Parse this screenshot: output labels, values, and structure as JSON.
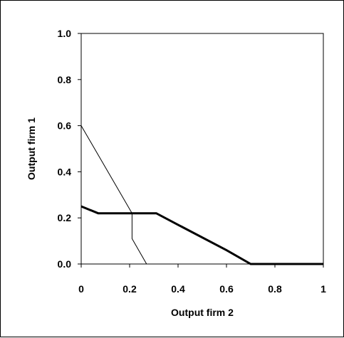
{
  "chart_data": {
    "type": "line",
    "title": "",
    "xlabel": "Output firm 2",
    "ylabel": "Output firm 1",
    "xlim": [
      0,
      1
    ],
    "ylim": [
      0,
      1
    ],
    "x_ticks": [
      {
        "value": 0,
        "label": "0"
      },
      {
        "value": 0.2,
        "label": "0.2"
      },
      {
        "value": 0.4,
        "label": "0.4"
      },
      {
        "value": 0.6,
        "label": "0.6"
      },
      {
        "value": 0.8,
        "label": "0.8"
      },
      {
        "value": 1,
        "label": "1"
      }
    ],
    "y_ticks": [
      {
        "value": 0,
        "label": "0.0"
      },
      {
        "value": 0.2,
        "label": "0.2"
      },
      {
        "value": 0.4,
        "label": "0.4"
      },
      {
        "value": 0.6,
        "label": "0.6"
      },
      {
        "value": 0.8,
        "label": "0.8"
      },
      {
        "value": 1,
        "label": "1.0"
      }
    ],
    "grid": false,
    "legend": "none",
    "series": [
      {
        "style": "thin",
        "color": "#000000",
        "points": [
          [
            0,
            0.6
          ],
          [
            0.21,
            0.22
          ],
          [
            0.21,
            0.11
          ],
          [
            0.27,
            0.0
          ]
        ]
      },
      {
        "style": "thick",
        "color": "#000000",
        "points": [
          [
            0,
            0.25
          ],
          [
            0.07,
            0.22
          ],
          [
            0.31,
            0.22
          ],
          [
            0.4,
            0.17
          ],
          [
            0.6,
            0.06
          ],
          [
            0.7,
            0.0
          ],
          [
            1.0,
            0.0
          ]
        ]
      }
    ]
  }
}
